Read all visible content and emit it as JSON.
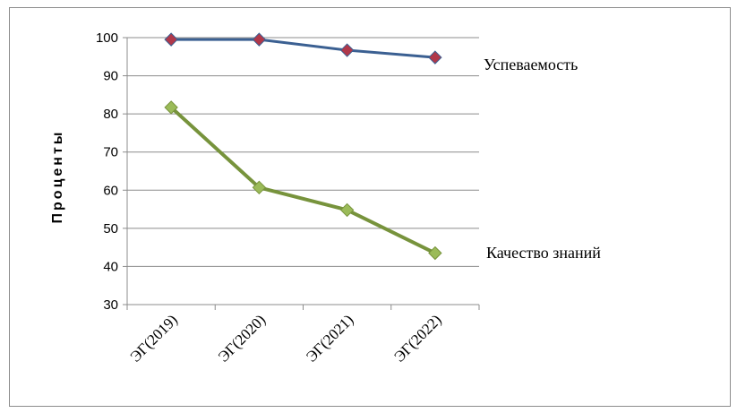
{
  "chart_data": {
    "type": "line",
    "title": "",
    "xlabel": "",
    "ylabel": "Проценты",
    "ylim": [
      30,
      100
    ],
    "yticks": [
      30,
      40,
      50,
      60,
      70,
      80,
      90,
      100
    ],
    "categories": [
      "ЭГ(2019)",
      "ЭГ(2020)",
      "ЭГ(2021)",
      "ЭГ(2022)"
    ],
    "grid": true,
    "legend": "none",
    "series": [
      {
        "name": "Успеваемость",
        "values": [
          99.5,
          99.5,
          96.7,
          94.8
        ],
        "color": "#3b6092",
        "marker_color": "#b0384a"
      },
      {
        "name": "Качество знаний",
        "values": [
          81.7,
          60.7,
          54.8,
          43.5
        ],
        "color": "#77933c",
        "marker_color": "#9bbb59"
      }
    ]
  }
}
